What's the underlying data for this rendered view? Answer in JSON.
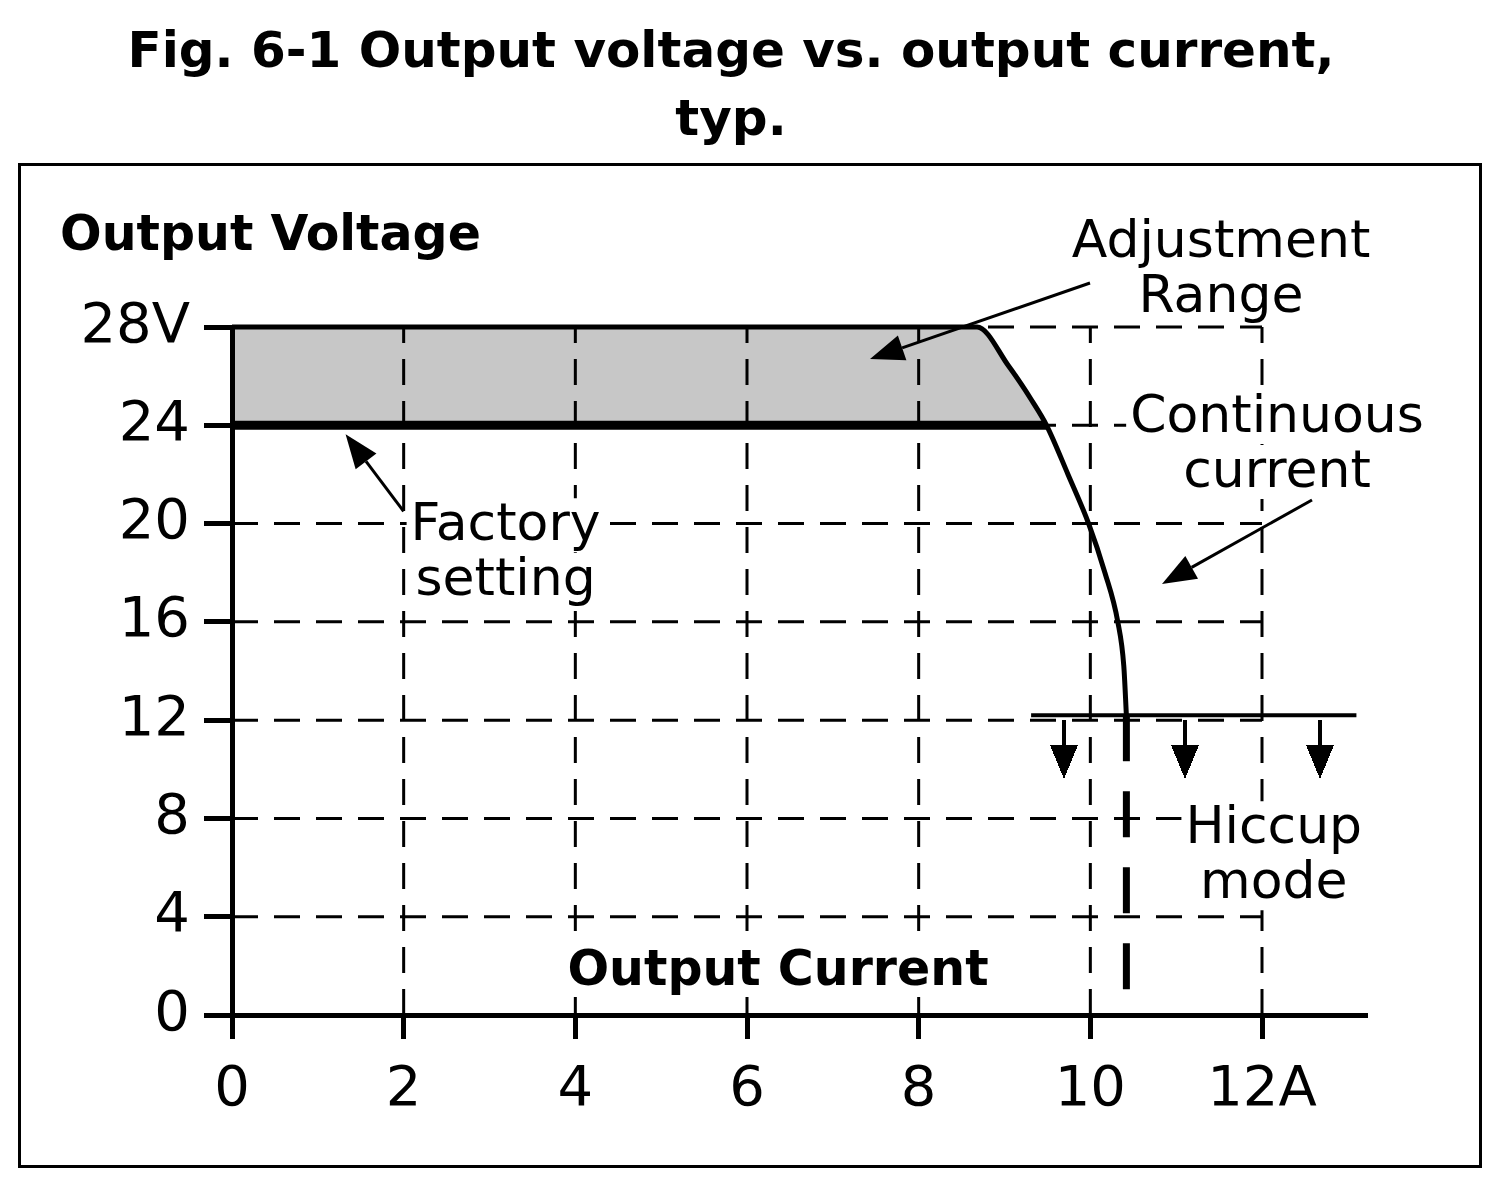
{
  "chart_data": {
    "type": "line",
    "title": "Fig. 6-1 Output voltage vs. output current, typ.",
    "xlabel": "Output Current",
    "ylabel": "Output Voltage",
    "xlim": [
      0,
      13.2
    ],
    "ylim": [
      0,
      28
    ],
    "xticks": [
      0,
      2,
      4,
      6,
      8,
      10,
      {
        "value": 12,
        "label": "12A"
      }
    ],
    "yticks": [
      0,
      4,
      8,
      12,
      16,
      20,
      24,
      {
        "value": 28,
        "label": "28V"
      }
    ],
    "grid": true,
    "series": [
      {
        "color": "#000000",
        "x": [
          0,
          8.68,
          9.05,
          9.32,
          9.49,
          9.74,
          9.98,
          10.17,
          10.32,
          10.39,
          10.42
        ],
        "values": [
          28,
          28,
          26.4,
          25,
          24,
          22,
          20,
          18,
          16,
          14.2,
          12.2
        ],
        "lower": [
          24,
          24,
          24,
          24,
          24,
          null,
          null,
          null,
          null,
          null,
          null
        ],
        "upper": [
          28,
          28,
          26.4,
          25,
          24,
          null,
          null,
          null,
          null,
          null,
          null
        ]
      },
      {
        "color": "#000000",
        "x": [
          0,
          9.49
        ],
        "values": [
          24,
          24
        ]
      },
      {
        "color": "#000000",
        "x": [
          9.31,
          13.1
        ],
        "values": [
          12.2,
          12.2
        ]
      },
      {
        "color": "#000000",
        "line_style": "dashed",
        "x": [
          10.42,
          10.42
        ],
        "values": [
          12.2,
          0
        ]
      }
    ],
    "annotations": [
      "Adjustment Range",
      {
        "text": "Factory setting",
        "x": 1.3,
        "y": 24
      },
      "Continuous current",
      {
        "text": "Hiccup mode",
        "x": 11.1,
        "y": 12.2
      }
    ]
  }
}
